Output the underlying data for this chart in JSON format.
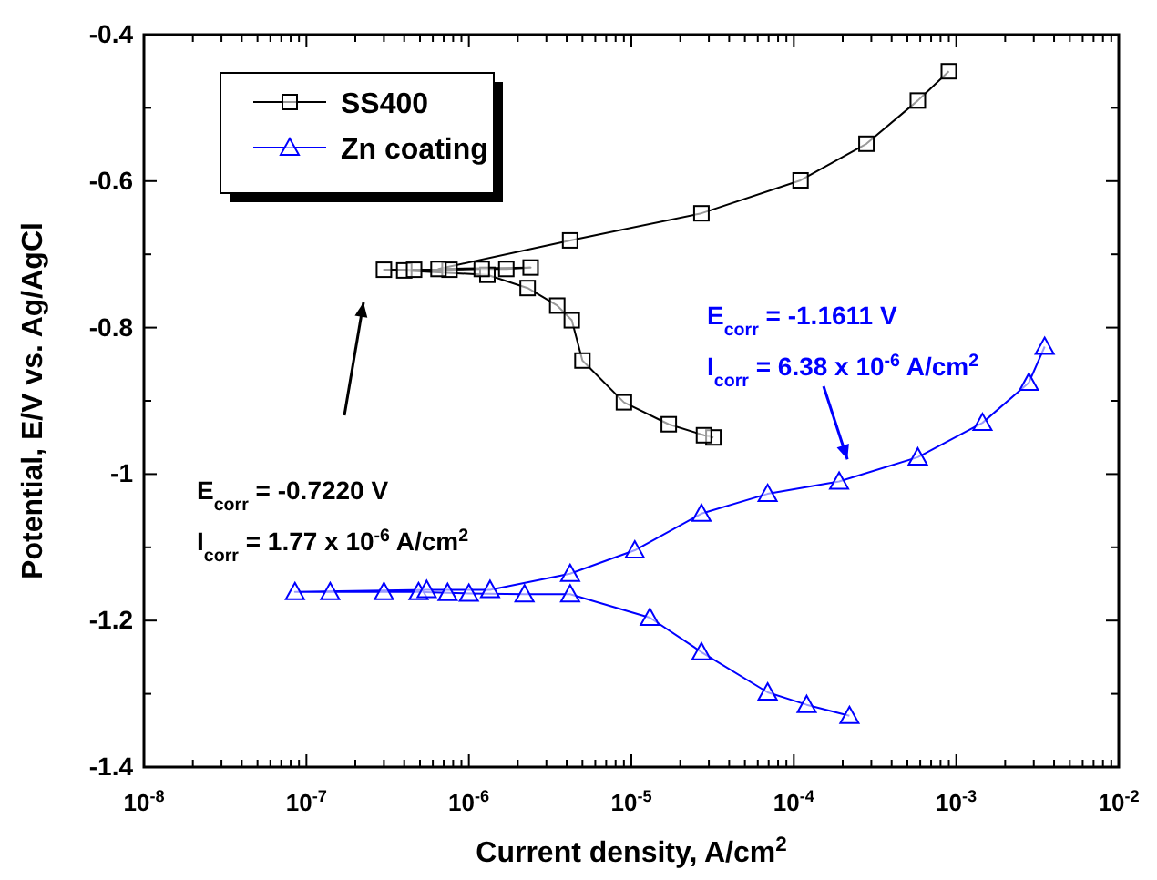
{
  "chart_data": {
    "type": "line",
    "xlabel": "Current density, A/cm$^{2}$",
    "ylabel": "Potential, E/V vs. Ag/AgCl",
    "log": "x",
    "xlim": [
      1e-08,
      0.01
    ],
    "ylim": [
      -1.4,
      -0.4
    ],
    "xticks": [
      {
        "value": 1e-08,
        "label": "10$^{-8}$"
      },
      {
        "value": 1e-07,
        "label": "10$^{-7}$"
      },
      {
        "value": 1e-06,
        "label": "10$^{-6}$"
      },
      {
        "value": 1e-05,
        "label": "10$^{-5}$"
      },
      {
        "value": 0.0001,
        "label": "10$^{-4}$"
      },
      {
        "value": 0.001,
        "label": "10$^{-3}$"
      },
      {
        "value": 0.01,
        "label": "10$^{-2}$"
      }
    ],
    "yticks": [
      -0.4,
      -0.6,
      -0.8,
      -1.0,
      -1.2,
      -1.4
    ],
    "legend": "top left",
    "grid": false,
    "series": [
      {
        "name": "SS400",
        "color": "#000000",
        "marker": "square",
        "x": [
          3.2e-05,
          2.8e-05,
          1.7e-05,
          9e-06,
          5e-06,
          4.3e-06,
          3.5e-06,
          2.3e-06,
          1.3e-06,
          4e-07,
          3e-07,
          4.6e-07,
          7.6e-07,
          1.2e-06,
          1.7e-06,
          2.4e-06,
          6.5e-07,
          4.2e-06,
          2.7e-05,
          0.00011,
          0.00028,
          0.00058,
          0.0009
        ],
        "values": [
          -0.95,
          -0.947,
          -0.932,
          -0.902,
          -0.845,
          -0.79,
          -0.77,
          -0.746,
          -0.728,
          -0.722,
          -0.721,
          -0.721,
          -0.721,
          -0.72,
          -0.72,
          -0.718,
          -0.72,
          -0.681,
          -0.644,
          -0.599,
          -0.549,
          -0.49,
          -0.45
        ]
      },
      {
        "name": "Zn coating",
        "color": "#0000ff",
        "marker": "triangle",
        "x": [
          0.00022,
          0.00012,
          6.9e-05,
          2.7e-05,
          1.3e-05,
          4.2e-06,
          2.2e-06,
          1e-06,
          7.4e-07,
          4.9e-07,
          3e-07,
          1.4e-07,
          8.5e-08,
          5.5e-07,
          1.35e-06,
          4.2e-06,
          1.05e-05,
          2.7e-05,
          6.9e-05,
          0.00019,
          0.00058,
          0.00145,
          0.0028,
          0.0035
        ],
        "values": [
          -1.33,
          -1.315,
          -1.298,
          -1.243,
          -1.196,
          -1.164,
          -1.164,
          -1.163,
          -1.162,
          -1.161,
          -1.161,
          -1.161,
          -1.161,
          -1.158,
          -1.158,
          -1.136,
          -1.104,
          -1.054,
          -1.027,
          -1.01,
          -0.977,
          -0.93,
          -0.875,
          -0.826
        ]
      }
    ],
    "annotations": [
      "E$_{corr}$ = -0.7220 V",
      "I$_{corr}$ = 1.77 x 10$^{-6}$ A/cm$^{2}$",
      "E$_{corr}$ = -1.1611 V",
      "I$_{corr}$ = 6.38 x 10$^{-6}$ A/cm$^{2}$"
    ]
  }
}
